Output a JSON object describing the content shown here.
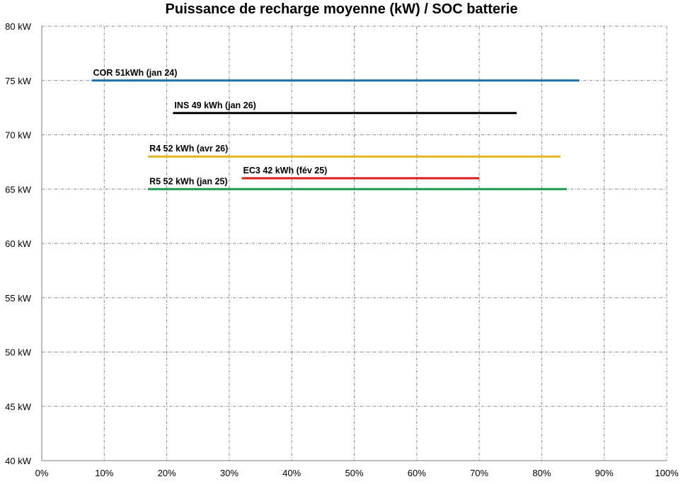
{
  "chart_data": {
    "type": "line",
    "title": "Puissance de recharge moyenne (kW) / SOC batterie",
    "xlabel": "",
    "ylabel": "",
    "xlim": [
      0,
      100
    ],
    "ylim": [
      40,
      80
    ],
    "x_ticks": [
      0,
      10,
      20,
      30,
      40,
      50,
      60,
      70,
      80,
      90,
      100
    ],
    "x_tick_labels": [
      "0%",
      "10%",
      "20%",
      "30%",
      "40%",
      "50%",
      "60%",
      "70%",
      "80%",
      "90%",
      "100%"
    ],
    "y_ticks": [
      40,
      45,
      50,
      55,
      60,
      65,
      70,
      75,
      80
    ],
    "y_tick_labels": [
      "40 kW",
      "45 kW",
      "50 kW",
      "55 kW",
      "60 kW",
      "65 kW",
      "70 kW",
      "75 kW",
      "80 kW"
    ],
    "grid": true,
    "legend": "none",
    "series": [
      {
        "name": "COR 51kWh (jan 24)",
        "color": "#1f6fa8",
        "x": [
          8,
          86
        ],
        "y": [
          75,
          75
        ]
      },
      {
        "name": "INS 49 kWh (jan 26)",
        "color": "#000000",
        "x": [
          21,
          76
        ],
        "y": [
          72,
          72
        ]
      },
      {
        "name": "R4 52 kWh (avr 26)",
        "color": "#e8b320",
        "x": [
          17,
          83
        ],
        "y": [
          68,
          68
        ]
      },
      {
        "name": "EC3 42 kWh (fév 25)",
        "color": "#dd1e1e",
        "x": [
          32,
          70
        ],
        "y": [
          66,
          66
        ]
      },
      {
        "name": "R5 52 kWh (jan 25)",
        "color": "#1e9a4e",
        "x": [
          17,
          84
        ],
        "y": [
          65,
          65
        ]
      }
    ]
  }
}
